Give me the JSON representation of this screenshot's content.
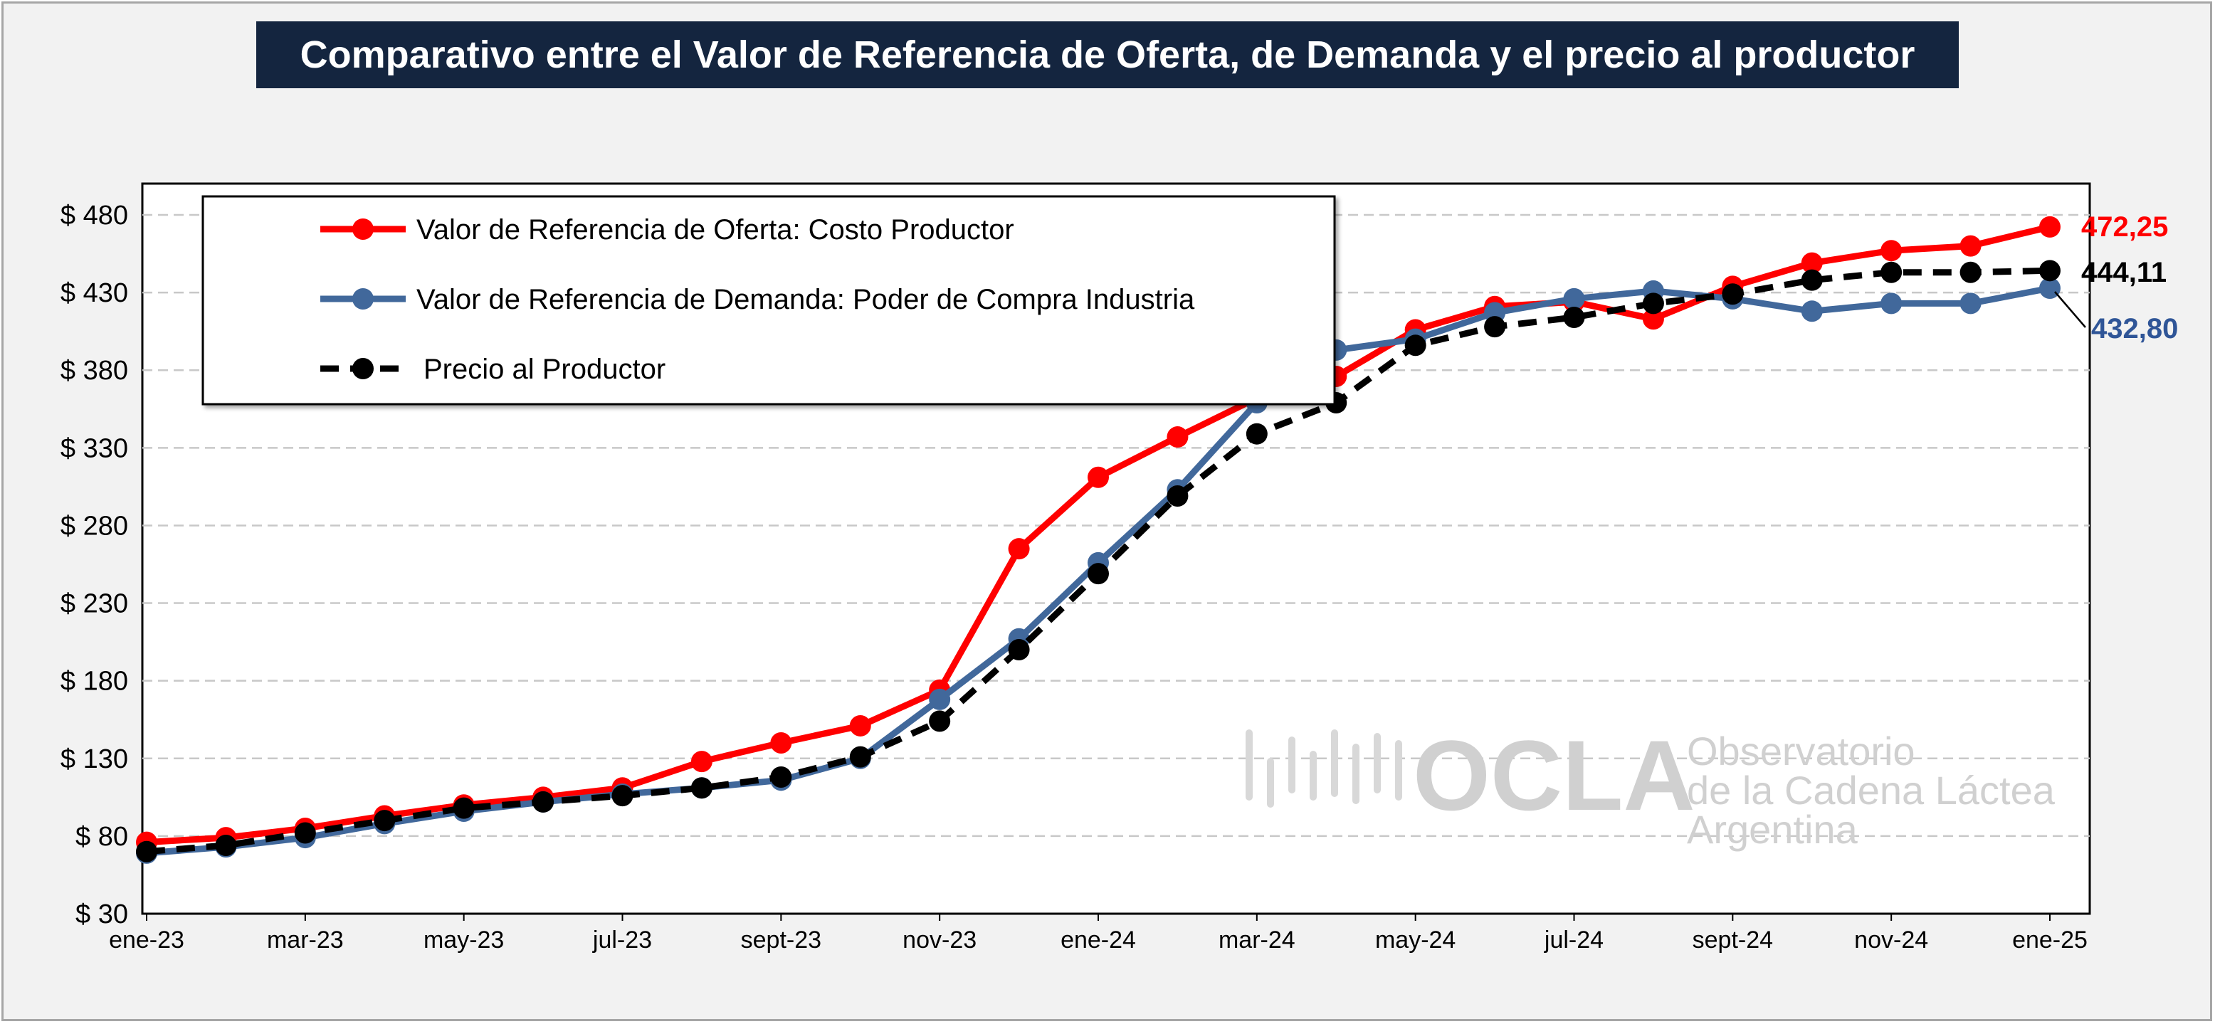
{
  "title": "Comparativo entre el Valor de Referencia de Oferta, de Demanda y el precio al productor",
  "watermark": {
    "logo_text": "OCLA",
    "line1": "Observatorio",
    "line2": "de la Cadena Láctea",
    "line3": "Argentina"
  },
  "colors": {
    "oferta": "#ff0000",
    "demanda": "#41689b",
    "productor": "#000000",
    "oferta_label": "#ff0000",
    "demanda_label": "#2f5597",
    "productor_label": "#000000"
  },
  "chart_data": {
    "type": "line",
    "title": "Comparativo entre el Valor de Referencia de Oferta, de Demanda y el precio al productor",
    "xlabel": "",
    "ylabel": "",
    "ylim": [
      30,
      480
    ],
    "y_ticks": [
      "$ 480",
      "$ 430",
      "$ 380",
      "$ 330",
      "$ 280",
      "$ 230",
      "$ 180",
      "$ 130",
      "$ 80",
      "$ 30"
    ],
    "y_tick_values": [
      480,
      430,
      380,
      330,
      280,
      230,
      180,
      130,
      80,
      30
    ],
    "x_tick_labels": [
      "ene-23",
      "mar-23",
      "may-23",
      "jul-23",
      "sept-23",
      "nov-23",
      "ene-24",
      "mar-24",
      "may-24",
      "jul-24",
      "sept-24",
      "nov-24",
      "ene-25"
    ],
    "x": [
      "ene-23",
      "feb-23",
      "mar-23",
      "abr-23",
      "may-23",
      "jun-23",
      "jul-23",
      "ago-23",
      "sept-23",
      "oct-23",
      "nov-23",
      "dic-23",
      "ene-24",
      "feb-24",
      "mar-24",
      "abr-24",
      "may-24",
      "jun-24",
      "jul-24",
      "ago-24",
      "sept-24",
      "oct-24",
      "nov-24",
      "dic-24",
      "ene-25"
    ],
    "grid": true,
    "legend_position": "top-left",
    "series": [
      {
        "name": "Valor de Referencia de Oferta: Costo Productor",
        "style": "solid",
        "values": [
          76,
          79,
          85,
          93,
          100,
          105,
          111,
          128,
          140,
          151,
          174,
          265,
          311,
          337,
          362,
          376,
          406,
          421,
          424,
          413,
          434,
          449,
          457,
          460,
          472.25
        ]
      },
      {
        "name": "Valor de Referencia de Demanda: Poder de Compra Industria",
        "style": "solid",
        "values": [
          69,
          73,
          79,
          88,
          96,
          102,
          107,
          111,
          116,
          130,
          168,
          207,
          256,
          303,
          359,
          393,
          400,
          417,
          426,
          431,
          426,
          418,
          423,
          423,
          432.8
        ]
      },
      {
        "name": "Precio al Productor",
        "style": "dashed",
        "values": [
          70,
          74,
          82,
          90,
          98,
          102,
          106,
          111,
          118,
          131,
          154,
          200,
          249,
          299,
          339,
          359,
          396,
          408,
          414,
          423,
          429,
          438,
          443,
          443,
          444.11
        ]
      }
    ],
    "end_labels": [
      "472,25",
      "432,80",
      "444,11"
    ]
  }
}
